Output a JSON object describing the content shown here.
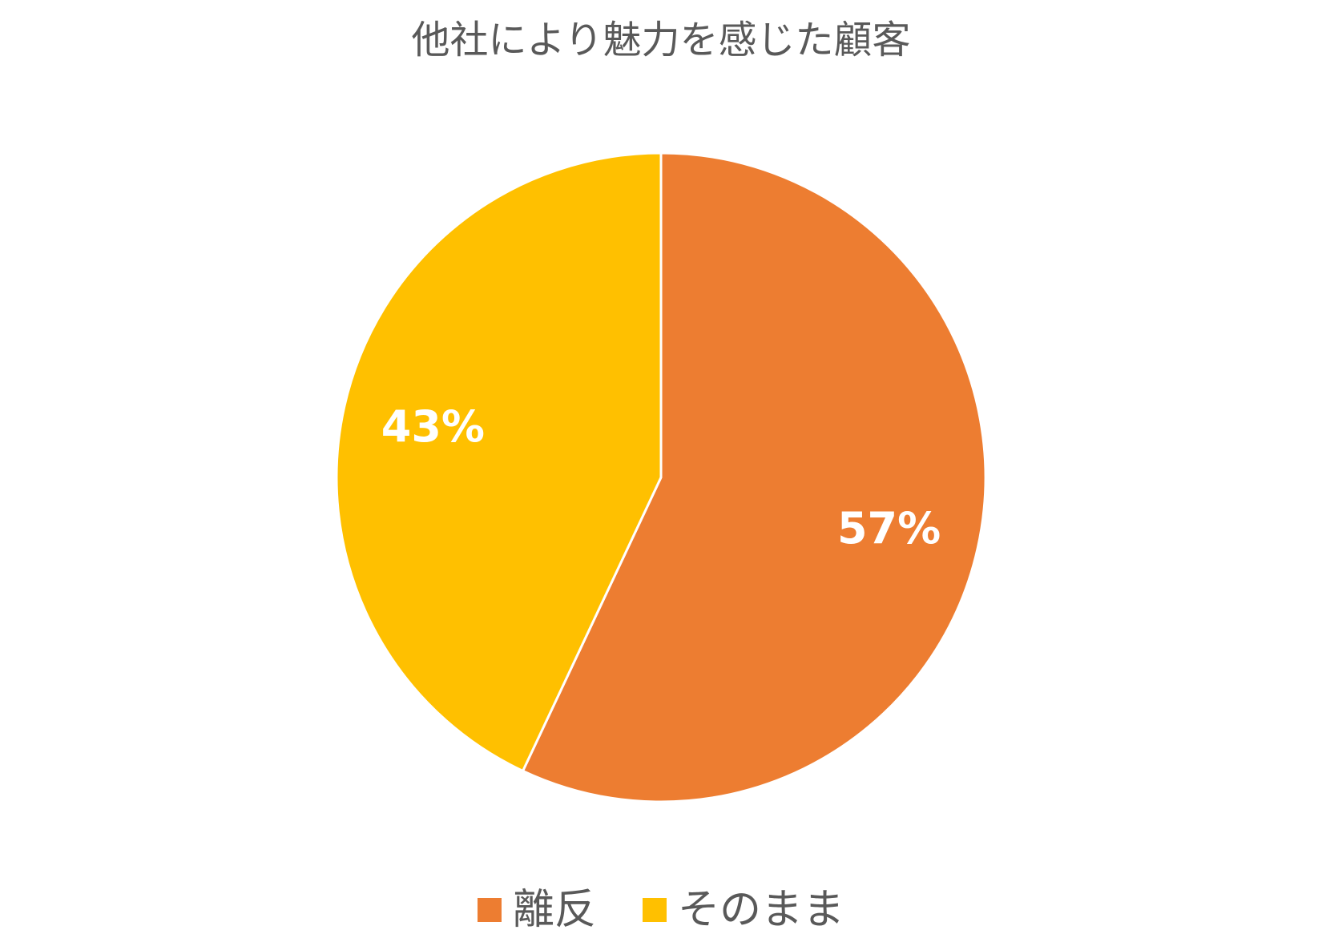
{
  "chart_data": {
    "type": "pie",
    "title": "他社により魅力を感じた顧客",
    "start_angle_deg": 0,
    "direction": "clockwise",
    "legend_position": "bottom",
    "slices": [
      {
        "name": "離反",
        "value": 57,
        "label": "57%",
        "color": "#ED7D31"
      },
      {
        "name": "そのまま",
        "value": 43,
        "label": "43%",
        "color": "#FFC000"
      }
    ]
  }
}
